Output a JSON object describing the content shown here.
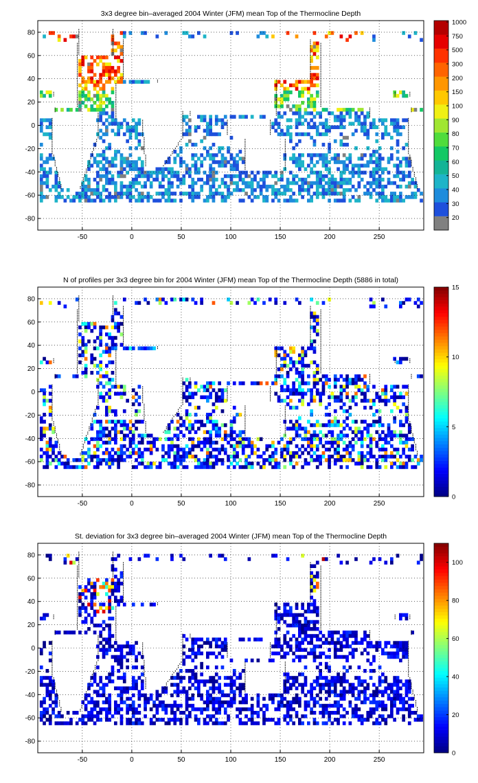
{
  "panels": [
    {
      "id": "mean",
      "title": "3x3 degree bin–averaged 2004 Winter (JFM) mean Top of the Thermocline Depth",
      "colorbar_type": "discrete",
      "colorbar_labels": [
        "20",
        "30",
        "40",
        "50",
        "60",
        "70",
        "80",
        "90",
        "100",
        "150",
        "200",
        "300",
        "500",
        "750",
        "1000"
      ],
      "colorbar_colors": [
        "#808080",
        "#1e50dc",
        "#1e8cdc",
        "#1eb4c8",
        "#14b496",
        "#14c864",
        "#50dc3c",
        "#a0e632",
        "#f0f014",
        "#ffc800",
        "#ff9600",
        "#ff6400",
        "#ff3200",
        "#e60000",
        "#b40000"
      ],
      "grid_seed": 11,
      "grid_density": 0.55
    },
    {
      "id": "count",
      "title": "N of profiles per 3x3 degree bin for 2004 Winter (JFM) mean Top of the Thermocline Depth  (5886 in total)",
      "colorbar_type": "continuous",
      "colorbar_ticks": [
        "0",
        "5",
        "10",
        "15"
      ],
      "colorbar_range": [
        0,
        15
      ],
      "grid_seed": 23,
      "grid_density": 0.5
    },
    {
      "id": "std",
      "title": "St. deviation for 3x3 degree bin–averaged 2004 Winter (JFM) mean Top of the Thermocline Depth",
      "colorbar_type": "continuous",
      "colorbar_ticks": [
        "0",
        "20",
        "40",
        "60",
        "80",
        "100"
      ],
      "colorbar_range": [
        0,
        110
      ],
      "grid_seed": 37,
      "grid_density": 0.52
    }
  ],
  "axes": {
    "x_ticks": [
      "-50",
      "0",
      "50",
      "100",
      "150",
      "200",
      "250"
    ],
    "x_values": [
      -50,
      0,
      50,
      100,
      150,
      200,
      250
    ],
    "x_range": [
      -95,
      295
    ],
    "y_ticks": [
      "80",
      "60",
      "40",
      "20",
      "0",
      "-20",
      "-40",
      "-60",
      "-80"
    ],
    "y_values": [
      80,
      60,
      40,
      20,
      0,
      -20,
      -40,
      -60,
      -80
    ],
    "y_range": [
      -90,
      90
    ],
    "grid": "dotted"
  }
}
